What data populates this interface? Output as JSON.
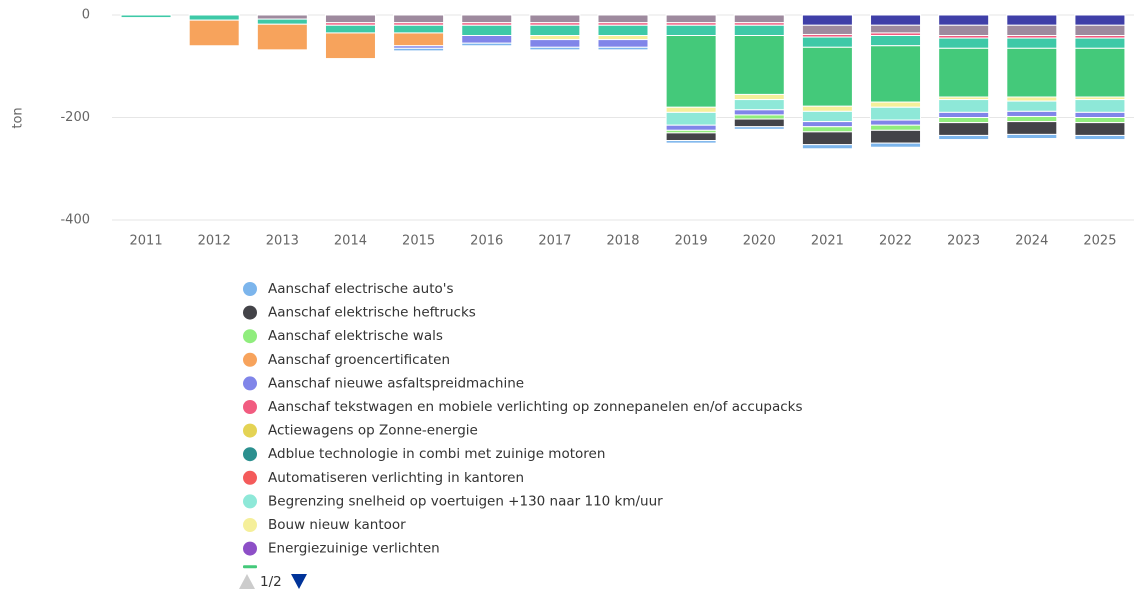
{
  "chart_data": {
    "type": "stacked_bar",
    "y_label": "ton",
    "categories": [
      "2011",
      "2012",
      "2013",
      "2014",
      "2015",
      "2016",
      "2017",
      "2018",
      "2019",
      "2020",
      "2021",
      "2022",
      "2023",
      "2024",
      "2025"
    ],
    "ylim": [
      -400,
      0
    ],
    "yticks": [
      0,
      -200,
      -400
    ],
    "grid": true,
    "legend_page": "1/2",
    "series": [
      {
        "color": "#3f3fa8",
        "values": [
          0,
          0,
          0,
          0,
          0,
          0,
          0,
          0,
          0,
          0,
          -20,
          -20,
          -20,
          -20,
          -20
        ]
      },
      {
        "color": "#9e8a9e",
        "values": [
          0,
          0,
          -8,
          -15,
          -15,
          -15,
          -15,
          -15,
          -15,
          -15,
          -18,
          -15,
          -20,
          -20,
          -20
        ]
      },
      {
        "name": "Aanschaf tekstwagen en mobiele verlichting op zonnepanelen en/of accupacks",
        "color": "#f15c80",
        "values": [
          0,
          0,
          0,
          -5,
          -5,
          -5,
          -5,
          -5,
          -5,
          -5,
          -5,
          -5,
          -5,
          -5,
          -5
        ]
      },
      {
        "color": "#3ec9a7",
        "values": [
          -5,
          -10,
          -10,
          -15,
          -15,
          -20,
          -20,
          -20,
          -20,
          -20,
          -20,
          -20,
          -20,
          -20,
          -20
        ]
      },
      {
        "name": "Aanschaf groencertificaten",
        "color": "#f7a35c",
        "values": [
          0,
          -50,
          -50,
          -50,
          -25,
          0,
          0,
          0,
          0,
          0,
          0,
          0,
          0,
          0,
          0
        ]
      },
      {
        "color": "#44c97a",
        "values": [
          0,
          0,
          0,
          0,
          0,
          0,
          0,
          0,
          -140,
          -115,
          -115,
          -110,
          -95,
          -95,
          -95
        ]
      },
      {
        "name": "Bouw nieuw kantoor",
        "color": "#f5ef9a",
        "values": [
          0,
          0,
          0,
          0,
          0,
          0,
          -8,
          -8,
          -10,
          -10,
          -10,
          -10,
          -5,
          -8,
          -5
        ]
      },
      {
        "name": "Begrenzing snelheid op voertuigen +130 naar 110 km/uur",
        "color": "#8ee8d8",
        "values": [
          0,
          0,
          0,
          0,
          0,
          0,
          0,
          0,
          -25,
          -20,
          -20,
          -25,
          -25,
          -20,
          -25
        ]
      },
      {
        "name": "Aanschaf nieuwe asfaltspreidmachine",
        "color": "#8085e9",
        "values": [
          0,
          0,
          0,
          0,
          -5,
          -15,
          -15,
          -15,
          -10,
          -10,
          -10,
          -10,
          -10,
          -10,
          -10
        ]
      },
      {
        "name": "Aanschaf elektrische wals",
        "color": "#90ed7d",
        "values": [
          0,
          0,
          0,
          0,
          0,
          0,
          0,
          0,
          -5,
          -8,
          -10,
          -10,
          -10,
          -10,
          -10
        ]
      },
      {
        "name": "Aanschaf elektrische heftrucks",
        "color": "#434348",
        "values": [
          0,
          0,
          0,
          0,
          0,
          0,
          0,
          0,
          -15,
          -15,
          -25,
          -25,
          -25,
          -25,
          -25
        ]
      },
      {
        "name": "Aanschaf electrische auto's",
        "color": "#7cb5ec",
        "values": [
          0,
          0,
          0,
          0,
          -5,
          -5,
          -5,
          -5,
          -5,
          -5,
          -8,
          -8,
          -8,
          -8,
          -8
        ]
      },
      {
        "name": "Actiewagens op Zonne-energie",
        "color": "#e4d354",
        "values": [
          0,
          0,
          0,
          0,
          0,
          0,
          0,
          0,
          0,
          0,
          0,
          0,
          0,
          0,
          0
        ]
      },
      {
        "name": "Adblue technologie in combi met zuinige motoren",
        "color": "#2b908f",
        "values": [
          0,
          0,
          0,
          0,
          0,
          0,
          0,
          0,
          0,
          0,
          0,
          0,
          0,
          0,
          0
        ]
      },
      {
        "name": "Automatiseren verlichting in kantoren",
        "color": "#f45b5b",
        "values": [
          0,
          0,
          0,
          0,
          0,
          0,
          0,
          0,
          0,
          0,
          0,
          0,
          0,
          0,
          0
        ]
      },
      {
        "name": "Energiezuinige verlichten",
        "color": "#8d4fc7",
        "values": [
          0,
          0,
          0,
          0,
          0,
          0,
          0,
          0,
          0,
          0,
          0,
          0,
          0,
          0,
          0
        ]
      }
    ]
  }
}
